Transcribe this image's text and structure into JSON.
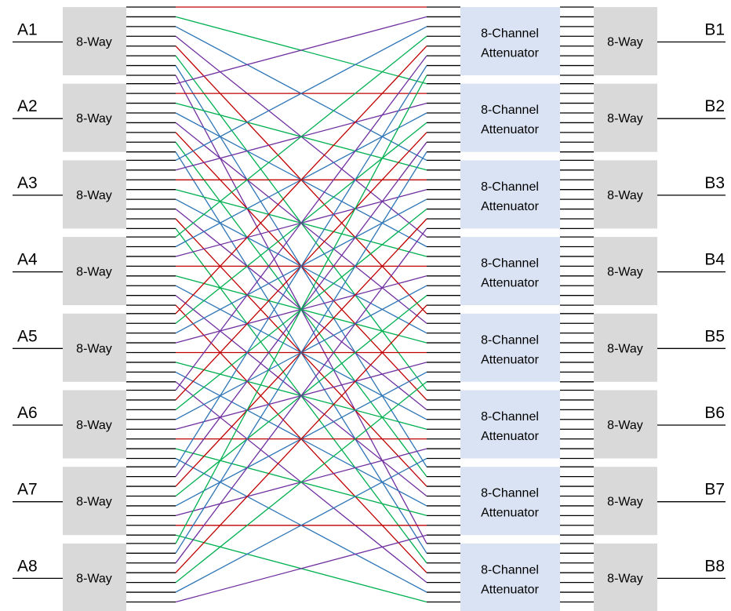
{
  "diagram": {
    "left_inputs": [
      {
        "port": "A1",
        "splitter": "8-Way"
      },
      {
        "port": "A2",
        "splitter": "8-Way"
      },
      {
        "port": "A3",
        "splitter": "8-Way"
      },
      {
        "port": "A4",
        "splitter": "8-Way"
      },
      {
        "port": "A5",
        "splitter": "8-Way"
      },
      {
        "port": "A6",
        "splitter": "8-Way"
      },
      {
        "port": "A7",
        "splitter": "8-Way"
      },
      {
        "port": "A8",
        "splitter": "8-Way"
      }
    ],
    "attenuators": [
      {
        "line1": "8-Channel",
        "line2": "Attenuator"
      },
      {
        "line1": "8-Channel",
        "line2": "Attenuator"
      },
      {
        "line1": "8-Channel",
        "line2": "Attenuator"
      },
      {
        "line1": "8-Channel",
        "line2": "Attenuator"
      },
      {
        "line1": "8-Channel",
        "line2": "Attenuator"
      },
      {
        "line1": "8-Channel",
        "line2": "Attenuator"
      },
      {
        "line1": "8-Channel",
        "line2": "Attenuator"
      },
      {
        "line1": "8-Channel",
        "line2": "Attenuator"
      }
    ],
    "right_outputs": [
      {
        "port": "B1",
        "splitter": "8-Way"
      },
      {
        "port": "B2",
        "splitter": "8-Way"
      },
      {
        "port": "B3",
        "splitter": "8-Way"
      },
      {
        "port": "B4",
        "splitter": "8-Way"
      },
      {
        "port": "B5",
        "splitter": "8-Way"
      },
      {
        "port": "B6",
        "splitter": "8-Way"
      },
      {
        "port": "B7",
        "splitter": "8-Way"
      },
      {
        "port": "B8",
        "splitter": "8-Way"
      }
    ],
    "channels_per_block": 8,
    "line_colors": [
      "#c00000",
      "#7030a0",
      "#2e75b6",
      "#00b050"
    ]
  }
}
